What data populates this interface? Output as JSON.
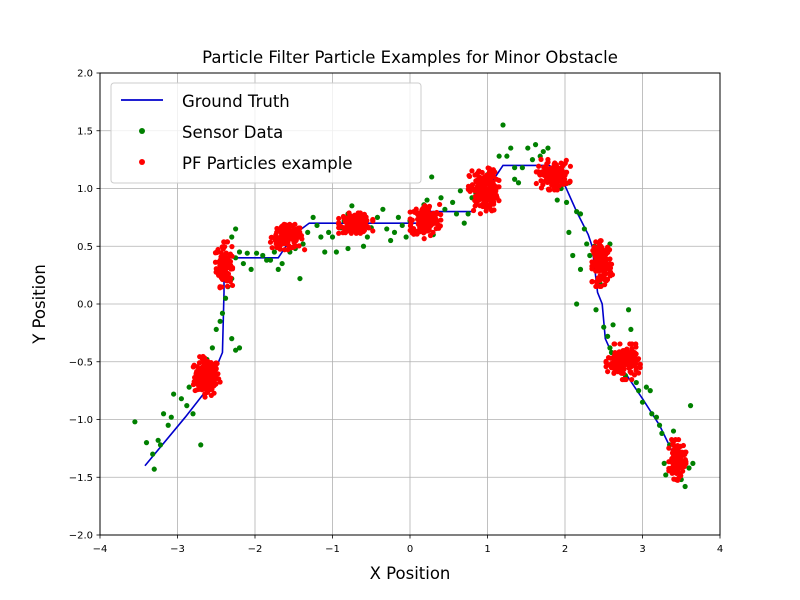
{
  "chart_data": {
    "type": "scatter",
    "title": "Particle Filter Particle Examples for Minor Obstacle",
    "xlabel": "X Position",
    "ylabel": "Y Position",
    "xlim": [
      -4,
      4
    ],
    "ylim": [
      -2,
      2
    ],
    "xticks": [
      -4,
      -3,
      -2,
      -1,
      0,
      1,
      2,
      3,
      4
    ],
    "yticks": [
      -2.0,
      -1.5,
      -1.0,
      -0.5,
      0.0,
      0.5,
      1.0,
      1.5,
      2.0
    ],
    "xtick_labels": [
      "−4",
      "−3",
      "−2",
      "−1",
      "0",
      "1",
      "2",
      "3",
      "4"
    ],
    "ytick_labels": [
      "−2.0",
      "−1.5",
      "−1.0",
      "−0.5",
      "0.0",
      "0.5",
      "1.0",
      "1.5",
      "2.0"
    ],
    "grid": true,
    "legend_position": "top-left",
    "legend": [
      {
        "label": "Ground Truth",
        "kind": "line",
        "color": "#0000cc"
      },
      {
        "label": "Sensor Data",
        "kind": "marker",
        "color": "#008000"
      },
      {
        "label": "PF Particles example",
        "kind": "marker",
        "color": "#ff0000"
      }
    ],
    "series": [
      {
        "name": "Ground Truth",
        "kind": "line",
        "color": "#0000cc",
        "points": [
          [
            -3.42,
            -1.4
          ],
          [
            -2.9,
            -0.98
          ],
          [
            -2.62,
            -0.74
          ],
          [
            -2.42,
            -0.42
          ],
          [
            -2.4,
            0.1
          ],
          [
            -2.4,
            0.32
          ],
          [
            -2.32,
            0.4
          ],
          [
            -1.7,
            0.4
          ],
          [
            -1.5,
            0.6
          ],
          [
            -1.3,
            0.7
          ],
          [
            -0.4,
            0.7
          ],
          [
            0.2,
            0.7
          ],
          [
            0.25,
            0.8
          ],
          [
            0.8,
            0.8
          ],
          [
            1.0,
            1.0
          ],
          [
            1.2,
            1.2
          ],
          [
            1.8,
            1.2
          ],
          [
            1.95,
            1.1
          ],
          [
            2.15,
            0.8
          ],
          [
            2.3,
            0.6
          ],
          [
            2.35,
            0.5
          ],
          [
            2.42,
            0.1
          ],
          [
            2.48,
            0.0
          ],
          [
            2.52,
            -0.3
          ],
          [
            2.62,
            -0.45
          ],
          [
            2.8,
            -0.62
          ],
          [
            3.0,
            -0.82
          ],
          [
            3.22,
            -1.05
          ],
          [
            3.4,
            -1.3
          ]
        ]
      },
      {
        "name": "Sensor Data",
        "kind": "scatter",
        "color": "#008000",
        "points": [
          [
            -3.55,
            -1.02
          ],
          [
            -3.4,
            -1.2
          ],
          [
            -3.3,
            -1.43
          ],
          [
            -3.32,
            -1.3
          ],
          [
            -3.25,
            -1.18
          ],
          [
            -3.22,
            -1.22
          ],
          [
            -3.18,
            -0.95
          ],
          [
            -3.12,
            -1.05
          ],
          [
            -3.08,
            -0.98
          ],
          [
            -3.05,
            -0.78
          ],
          [
            -2.95,
            -0.82
          ],
          [
            -2.88,
            -0.88
          ],
          [
            -2.85,
            -0.72
          ],
          [
            -2.8,
            -0.95
          ],
          [
            -2.7,
            -1.22
          ],
          [
            -2.75,
            -0.62
          ],
          [
            -2.68,
            -0.55
          ],
          [
            -2.62,
            -0.48
          ],
          [
            -2.55,
            -0.38
          ],
          [
            -2.5,
            -0.22
          ],
          [
            -2.45,
            -0.15
          ],
          [
            -2.42,
            -0.08
          ],
          [
            -2.3,
            -0.3
          ],
          [
            -2.25,
            -0.4
          ],
          [
            -2.2,
            -0.38
          ],
          [
            -2.38,
            0.05
          ],
          [
            -2.35,
            0.15
          ],
          [
            -2.3,
            0.22
          ],
          [
            -2.25,
            0.4
          ],
          [
            -2.2,
            0.45
          ],
          [
            -2.15,
            0.35
          ],
          [
            -2.3,
            0.58
          ],
          [
            -2.25,
            0.65
          ],
          [
            -2.1,
            0.44
          ],
          [
            -2.05,
            0.3
          ],
          [
            -1.98,
            0.44
          ],
          [
            -1.9,
            0.42
          ],
          [
            -1.85,
            0.38
          ],
          [
            -1.8,
            0.38
          ],
          [
            -1.75,
            0.45
          ],
          [
            -1.7,
            0.3
          ],
          [
            -1.65,
            0.35
          ],
          [
            -1.62,
            0.55
          ],
          [
            -1.55,
            0.62
          ],
          [
            -1.48,
            0.48
          ],
          [
            -1.42,
            0.22
          ],
          [
            -1.38,
            0.52
          ],
          [
            -1.32,
            0.62
          ],
          [
            -1.25,
            0.75
          ],
          [
            -1.2,
            0.68
          ],
          [
            -1.15,
            0.58
          ],
          [
            -1.1,
            0.45
          ],
          [
            -1.05,
            0.62
          ],
          [
            -1.0,
            0.58
          ],
          [
            -0.95,
            0.45
          ],
          [
            -0.9,
            0.66
          ],
          [
            -0.85,
            0.72
          ],
          [
            -0.8,
            0.78
          ],
          [
            -0.75,
            0.85
          ],
          [
            -0.68,
            0.62
          ],
          [
            -0.6,
            0.5
          ],
          [
            -0.55,
            0.58
          ],
          [
            -0.5,
            0.66
          ],
          [
            -0.42,
            0.75
          ],
          [
            -0.35,
            0.82
          ],
          [
            -0.3,
            0.65
          ],
          [
            -0.25,
            0.55
          ],
          [
            -0.2,
            0.62
          ],
          [
            -0.15,
            0.75
          ],
          [
            -0.1,
            0.68
          ],
          [
            -0.05,
            0.58
          ],
          [
            0.0,
            0.72
          ],
          [
            0.05,
            0.62
          ],
          [
            0.1,
            0.78
          ],
          [
            0.18,
            0.86
          ],
          [
            0.22,
            0.9
          ],
          [
            0.28,
            1.1
          ],
          [
            0.32,
            0.72
          ],
          [
            0.4,
            0.92
          ],
          [
            0.45,
            0.82
          ],
          [
            0.55,
            0.88
          ],
          [
            0.6,
            0.78
          ],
          [
            0.65,
            0.98
          ],
          [
            0.7,
            0.7
          ],
          [
            0.75,
            0.78
          ],
          [
            0.8,
            0.92
          ],
          [
            0.85,
            0.96
          ],
          [
            0.9,
            1.05
          ],
          [
            0.95,
            1.08
          ],
          [
            1.0,
            1.12
          ],
          [
            1.1,
            1.0
          ],
          [
            1.15,
            1.28
          ],
          [
            1.2,
            1.55
          ],
          [
            1.25,
            1.28
          ],
          [
            1.3,
            1.35
          ],
          [
            1.35,
            1.18
          ],
          [
            1.4,
            1.05
          ],
          [
            1.45,
            1.18
          ],
          [
            1.52,
            1.35
          ],
          [
            1.58,
            1.25
          ],
          [
            1.62,
            1.38
          ],
          [
            1.68,
            1.28
          ],
          [
            1.72,
            1.32
          ],
          [
            1.78,
            1.35
          ],
          [
            1.85,
            1.15
          ],
          [
            1.9,
            0.9
          ],
          [
            1.95,
            1.0
          ],
          [
            2.02,
            0.88
          ],
          [
            2.05,
            0.62
          ],
          [
            2.1,
            0.42
          ],
          [
            2.15,
            0.8
          ],
          [
            2.2,
            0.78
          ],
          [
            2.25,
            0.65
          ],
          [
            2.28,
            0.52
          ],
          [
            2.15,
            0.0
          ],
          [
            2.2,
            0.3
          ],
          [
            2.32,
            0.42
          ],
          [
            2.38,
            0.5
          ],
          [
            2.4,
            -0.05
          ],
          [
            2.45,
            0.18
          ],
          [
            2.5,
            -0.2
          ],
          [
            2.55,
            -0.28
          ],
          [
            2.58,
            -0.38
          ],
          [
            2.6,
            -0.42
          ],
          [
            2.62,
            -0.18
          ],
          [
            2.68,
            -0.55
          ],
          [
            2.72,
            -0.48
          ],
          [
            2.78,
            -0.62
          ],
          [
            2.82,
            -0.05
          ],
          [
            2.85,
            -0.22
          ],
          [
            2.88,
            -0.45
          ],
          [
            2.92,
            -0.68
          ],
          [
            2.95,
            -0.75
          ],
          [
            3.0,
            -0.85
          ],
          [
            3.05,
            -0.72
          ],
          [
            3.1,
            -0.75
          ],
          [
            3.12,
            -0.95
          ],
          [
            3.18,
            -0.98
          ],
          [
            3.22,
            -1.05
          ],
          [
            3.25,
            -1.12
          ],
          [
            3.28,
            -1.38
          ],
          [
            3.3,
            -1.48
          ],
          [
            3.35,
            -1.22
          ],
          [
            3.4,
            -1.1
          ],
          [
            3.45,
            -1.3
          ],
          [
            3.5,
            -1.52
          ],
          [
            3.55,
            -1.58
          ],
          [
            3.6,
            -1.42
          ],
          [
            3.62,
            -0.88
          ],
          [
            3.65,
            -1.38
          ],
          [
            2.58,
            0.52
          ],
          [
            2.52,
            0.45
          ],
          [
            2.45,
            0.38
          ],
          [
            -2.62,
            -0.52
          ],
          [
            -2.55,
            -0.68
          ],
          [
            -1.55,
            0.45
          ],
          [
            -0.8,
            0.48
          ],
          [
            0.3,
            0.6
          ],
          [
            1.35,
            1.08
          ],
          [
            2.05,
            1.05
          ]
        ]
      },
      {
        "name": "PF Particles example",
        "kind": "scatter",
        "color": "#ff0000",
        "clusters": [
          {
            "cx": -2.62,
            "cy": -0.63,
            "sx": 0.08,
            "sy": 0.08,
            "n": 170
          },
          {
            "cx": -2.4,
            "cy": 0.34,
            "sx": 0.05,
            "sy": 0.09,
            "n": 110
          },
          {
            "cx": -1.58,
            "cy": 0.58,
            "sx": 0.1,
            "sy": 0.05,
            "n": 150
          },
          {
            "cx": -0.7,
            "cy": 0.7,
            "sx": 0.1,
            "sy": 0.04,
            "n": 140
          },
          {
            "cx": 0.2,
            "cy": 0.72,
            "sx": 0.09,
            "sy": 0.07,
            "n": 150
          },
          {
            "cx": 0.95,
            "cy": 0.98,
            "sx": 0.09,
            "sy": 0.09,
            "n": 170
          },
          {
            "cx": 1.85,
            "cy": 1.12,
            "sx": 0.1,
            "sy": 0.06,
            "n": 130
          },
          {
            "cx": 2.48,
            "cy": 0.35,
            "sx": 0.06,
            "sy": 0.09,
            "n": 140
          },
          {
            "cx": 2.75,
            "cy": -0.5,
            "sx": 0.1,
            "sy": 0.07,
            "n": 150
          },
          {
            "cx": 3.45,
            "cy": -1.35,
            "sx": 0.05,
            "sy": 0.08,
            "n": 110
          }
        ]
      }
    ]
  }
}
